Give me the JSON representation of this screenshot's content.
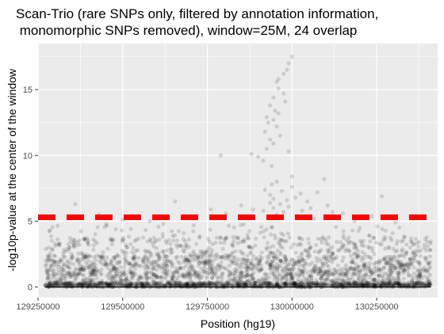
{
  "chart_data": {
    "type": "scatter",
    "title_lines": [
      "Scan-Trio (rare SNPs only, filtered by annotation information,",
      " monomorphic SNPs removed), window=25M, 24 overlap"
    ],
    "xlabel": "Position (hg19)",
    "ylabel": "-log10p-value at the center of the window",
    "xlim": [
      129250000,
      130430000
    ],
    "ylim": [
      -0.8,
      18.5
    ],
    "x_ticks": [
      129250000,
      129500000,
      129750000,
      130000000,
      130250000
    ],
    "x_tick_labels": [
      "129250000",
      "129500000",
      "129750000",
      "130000000",
      "130250000"
    ],
    "y_ticks": [
      0,
      5,
      10,
      15
    ],
    "y_tick_labels": [
      "0",
      "5",
      "10",
      "15"
    ],
    "x_minor_ticks": [
      129375000,
      129625000,
      129875000,
      130125000,
      130375000
    ],
    "y_minor_ticks": [
      2.5,
      7.5,
      12.5,
      17.5
    ],
    "threshold": {
      "y": 5.3,
      "color": "#ff0000",
      "style": "dashed"
    },
    "baseline": {
      "y": 0,
      "x_range": [
        129270000,
        130410000
      ],
      "color": "#000000"
    },
    "point_color": "#000000",
    "point_alpha": 0.13,
    "panel_background": "#ebebeb",
    "grid_color": "#ffffff",
    "grid": true,
    "points": [
      [
        130000000,
        17.5
      ],
      [
        129990000,
        17.0
      ],
      [
        129985000,
        16.5
      ],
      [
        129975000,
        16.2
      ],
      [
        129960000,
        15.8
      ],
      [
        129955000,
        15.6
      ],
      [
        129960000,
        15.1
      ],
      [
        129975000,
        14.7
      ],
      [
        129945000,
        14.4
      ],
      [
        129980000,
        14.1
      ],
      [
        129935000,
        13.8
      ],
      [
        129950000,
        13.4
      ],
      [
        129960000,
        13.2
      ],
      [
        129925000,
        12.9
      ],
      [
        129945000,
        12.7
      ],
      [
        129930000,
        12.5
      ],
      [
        129955000,
        12.2
      ],
      [
        129920000,
        11.8
      ],
      [
        129965000,
        11.5
      ],
      [
        129935000,
        11.2
      ],
      [
        129945000,
        10.9
      ],
      [
        129925000,
        10.5
      ],
      [
        129990000,
        10.3
      ],
      [
        129880000,
        10.1
      ],
      [
        129900000,
        9.9
      ],
      [
        129790000,
        10.0
      ],
      [
        129915000,
        9.6
      ],
      [
        129940000,
        9.2
      ],
      [
        130000000,
        8.4
      ],
      [
        130095000,
        8.2
      ],
      [
        129955000,
        8.0
      ],
      [
        129940000,
        7.8
      ],
      [
        130000000,
        7.6
      ],
      [
        129920000,
        7.4
      ],
      [
        129970000,
        7.3
      ],
      [
        130075000,
        7.2
      ],
      [
        130025000,
        7.1
      ],
      [
        129935000,
        7.0
      ],
      [
        130265000,
        6.9
      ],
      [
        130010000,
        6.8
      ],
      [
        129945000,
        6.7
      ],
      [
        129655000,
        6.5
      ],
      [
        129985000,
        6.6
      ],
      [
        130045000,
        6.5
      ],
      [
        129935000,
        6.4
      ],
      [
        129360000,
        6.3
      ],
      [
        129965000,
        6.3
      ],
      [
        129850000,
        6.2
      ],
      [
        130105000,
        6.2
      ],
      [
        129990000,
        6.1
      ],
      [
        130055000,
        6.0
      ],
      [
        129945000,
        6.0
      ],
      [
        129760000,
        5.9
      ],
      [
        129885000,
        5.9
      ],
      [
        130030000,
        5.8
      ],
      [
        129915000,
        5.8
      ],
      [
        130120000,
        5.7
      ],
      [
        129975000,
        5.7
      ],
      [
        129805000,
        5.6
      ],
      [
        130150000,
        5.6
      ],
      [
        129430000,
        5.5
      ],
      [
        129955000,
        5.5
      ],
      [
        130235000,
        5.4
      ],
      [
        129700000,
        5.3
      ],
      [
        130065000,
        5.2
      ],
      [
        129500000,
        5.1
      ],
      [
        129580000,
        5.0
      ],
      [
        130185000,
        5.0
      ],
      [
        130305000,
        4.9
      ],
      [
        129620000,
        4.8
      ]
    ],
    "random_seed": 20240601
  }
}
